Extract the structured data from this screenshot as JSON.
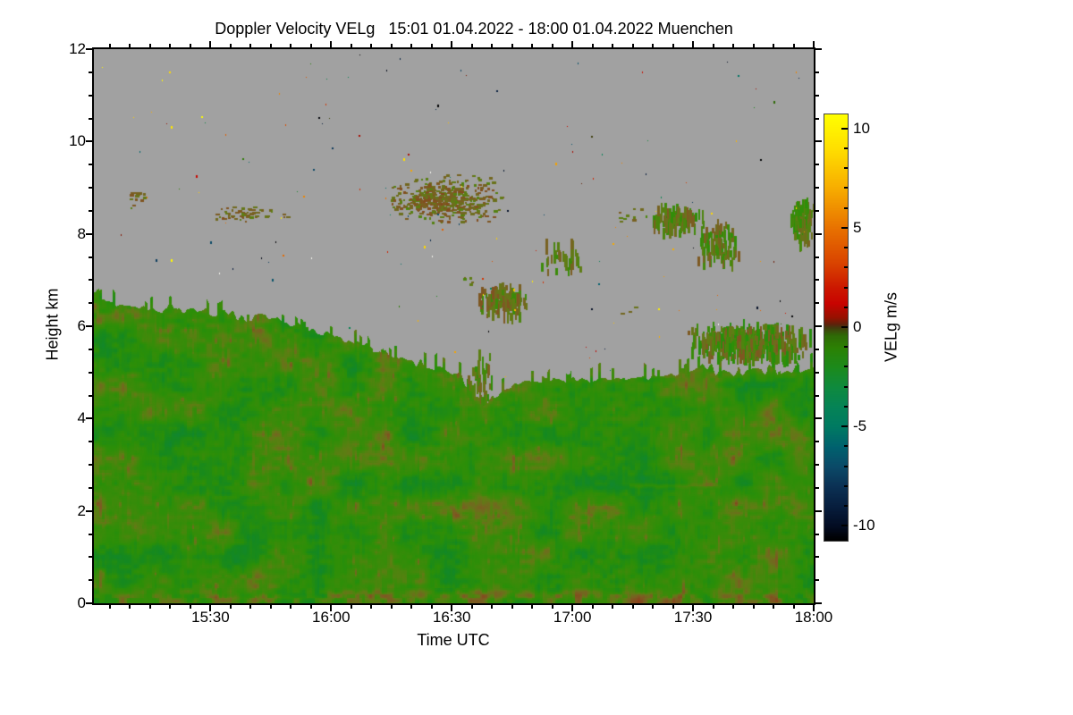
{
  "chart_data": {
    "type": "heatmap",
    "title": "Doppler Velocity VELg   15:01 01.04.2022 - 18:00 01.04.2022 Muenchen",
    "instrument_quantity": "Doppler Velocity VELg",
    "site": "Muenchen",
    "time_start": "15:01 01.04.2022",
    "time_end": "18:00 01.04.2022",
    "xlabel": "Time UTC",
    "ylabel": "Height km",
    "x_range_minutes": [
      0,
      179
    ],
    "x_major_ticks": [
      {
        "label": "15:30",
        "t": 29
      },
      {
        "label": "16:00",
        "t": 59
      },
      {
        "label": "16:30",
        "t": 89
      },
      {
        "label": "17:00",
        "t": 119
      },
      {
        "label": "17:30",
        "t": 149
      },
      {
        "label": "18:00",
        "t": 179
      }
    ],
    "x_minor_step_min": 5,
    "x_minor_phase_min": 4,
    "y_range_km": [
      0,
      12
    ],
    "y_major_ticks": [
      0,
      2,
      4,
      6,
      8,
      10,
      12
    ],
    "y_minor_step_km": 0.5,
    "grid": false,
    "no_data_color": "#a1a1a1",
    "frame_color": "#000000",
    "colorbar": {
      "label": "VELg m/s",
      "units": "m/s",
      "vmin": -10.7,
      "vmax": 10.7,
      "major_ticks": [
        10,
        5,
        0,
        -5,
        -10
      ],
      "minor_step": 1,
      "position": "right",
      "stops": [
        {
          "v": 10.7,
          "c": "#ffff00"
        },
        {
          "v": 9.0,
          "c": "#ffdf00"
        },
        {
          "v": 7.0,
          "c": "#f7ad00"
        },
        {
          "v": 5.0,
          "c": "#e87200"
        },
        {
          "v": 3.2,
          "c": "#d94300"
        },
        {
          "v": 2.0,
          "c": "#cc1800"
        },
        {
          "v": 1.2,
          "c": "#c80400"
        },
        {
          "v": 0.5,
          "c": "#971100"
        },
        {
          "v": 0.15,
          "c": "#5c230c"
        },
        {
          "v": 0.0,
          "c": "#433a0e"
        },
        {
          "v": -0.4,
          "c": "#2f6a06"
        },
        {
          "v": -1.0,
          "c": "#2c8104"
        },
        {
          "v": -2.0,
          "c": "#1c8a1c"
        },
        {
          "v": -3.0,
          "c": "#0f8a3e"
        },
        {
          "v": -4.0,
          "c": "#058356"
        },
        {
          "v": -5.0,
          "c": "#007a62"
        },
        {
          "v": -6.0,
          "c": "#00626e"
        },
        {
          "v": -7.0,
          "c": "#0b4a68"
        },
        {
          "v": -8.0,
          "c": "#0b3154"
        },
        {
          "v": -9.0,
          "c": "#071e3e"
        },
        {
          "v": -10.0,
          "c": "#030c22"
        },
        {
          "v": -10.7,
          "c": "#000000"
        }
      ]
    },
    "layer_top_profile": {
      "comment": "top of continuous aerosol/cloud return layer, km vs minutes after 15:01",
      "t_min": [
        0,
        10,
        21,
        32,
        43,
        54,
        66,
        77,
        85,
        91,
        94,
        97,
        100,
        104,
        108,
        116,
        124,
        132,
        141,
        150,
        160,
        170,
        179
      ],
      "km": [
        6.58,
        6.47,
        6.38,
        6.28,
        6.18,
        5.93,
        5.6,
        5.28,
        5.12,
        4.96,
        4.62,
        4.3,
        4.48,
        4.7,
        4.8,
        4.77,
        4.82,
        4.86,
        4.96,
        5.1,
        5.02,
        5.05,
        5.08
      ]
    },
    "main_layer_values": {
      "typical_velocity_ms": -1.5,
      "range_ms": [
        -2.8,
        0.8
      ],
      "description": "mostly green (approx -1 to -2.5 m/s downdraft scale) with brown/olive mottling near 0 m/s and reddish streaks near ground"
    },
    "texture_palette": [
      {
        "v": -3.0,
        "c": "#0d8344"
      },
      {
        "v": -2.3,
        "c": "#15891f"
      },
      {
        "v": -1.6,
        "c": "#2b8f08"
      },
      {
        "v": -0.9,
        "c": "#3f8a0a"
      },
      {
        "v": -0.3,
        "c": "#5f7d14"
      },
      {
        "v": 0.1,
        "c": "#6f6c1e"
      },
      {
        "v": 0.6,
        "c": "#7c5c22"
      },
      {
        "v": 1.2,
        "c": "#84491e"
      },
      {
        "v": 2.2,
        "c": "#9c3212"
      }
    ],
    "cloud_patches": [
      {
        "t0": 7,
        "t1": 12.5,
        "km0": 8.55,
        "km1": 9.0,
        "density": 0.3,
        "mode": "dash",
        "vmin": -0.5,
        "vmax": 0.9
      },
      {
        "t0": 29,
        "t1": 45,
        "km0": 8.28,
        "km1": 8.66,
        "density": 0.5,
        "mode": "dash",
        "vmin": -0.4,
        "vmax": 1.0
      },
      {
        "t0": 45,
        "t1": 49,
        "km0": 8.3,
        "km1": 8.55,
        "density": 0.15,
        "mode": "dash",
        "vmin": -0.4,
        "vmax": 0.8
      },
      {
        "t0": 72,
        "t1": 103,
        "km0": 8.2,
        "km1": 9.35,
        "density": 0.45,
        "mode": "dash",
        "vmin": -0.6,
        "vmax": 1.1
      },
      {
        "t0": 77,
        "t1": 95,
        "km0": 8.4,
        "km1": 9.05,
        "density": 0.95,
        "mode": "dash",
        "vmin": -0.5,
        "vmax": 1.2
      },
      {
        "t0": 95,
        "t1": 108,
        "km0": 6.15,
        "km1": 6.9,
        "density": 0.6,
        "mode": "strand",
        "vmin": -1.2,
        "vmax": 0.9
      },
      {
        "t0": 90,
        "t1": 95,
        "km0": 6.9,
        "km1": 7.15,
        "density": 0.22,
        "mode": "dash",
        "vmin": -0.8,
        "vmax": 0.6
      },
      {
        "t0": 110,
        "t1": 122,
        "km0": 7.0,
        "km1": 7.9,
        "density": 0.16,
        "mode": "strand",
        "vmin": -1.2,
        "vmax": 0.6
      },
      {
        "t0": 138,
        "t1": 152,
        "km0": 7.95,
        "km1": 8.62,
        "density": 0.55,
        "mode": "strand",
        "vmin": -1.5,
        "vmax": 0.7
      },
      {
        "t0": 149,
        "t1": 161,
        "km0": 7.25,
        "km1": 8.2,
        "density": 0.45,
        "mode": "strand",
        "vmin": -1.5,
        "vmax": 0.7
      },
      {
        "t0": 128,
        "t1": 138,
        "km0": 8.25,
        "km1": 8.6,
        "density": 0.15,
        "mode": "dash",
        "vmin": -0.8,
        "vmax": 0.7
      },
      {
        "t0": 173,
        "t1": 179,
        "km0": 7.7,
        "km1": 8.75,
        "density": 0.85,
        "mode": "strand",
        "vmin": -1.7,
        "vmax": 0.4
      },
      {
        "t0": 147,
        "t1": 179,
        "km0": 5.22,
        "km1": 6.02,
        "density": 1.0,
        "mode": "strand",
        "vmin": -1.9,
        "vmax": 0.8
      },
      {
        "t0": 92,
        "t1": 100,
        "km0": 4.15,
        "km1": 5.5,
        "density": 0.2,
        "mode": "strand",
        "vmin": -1.5,
        "vmax": 0.5
      },
      {
        "t0": 130,
        "t1": 136,
        "km0": 6.25,
        "km1": 6.5,
        "density": 0.12,
        "mode": "dash",
        "vmin": -0.8,
        "vmax": 0.6
      }
    ],
    "near_zero_streaks": [
      {
        "t0": 133,
        "t1": 156,
        "km": 2.55,
        "half_km": 0.07,
        "boost": 1.0
      },
      {
        "t0": 58,
        "t1": 133,
        "km": 0.18,
        "half_km": 0.14,
        "boost": 1.1
      },
      {
        "t0": 28,
        "t1": 58,
        "km": 0.12,
        "half_km": 0.08,
        "boost": 0.6
      }
    ],
    "noise_speckles": {
      "count": 150,
      "white_extra": 5,
      "seed": 7,
      "description": "isolated single-pixel returns of random velocity scattered in the no-data region"
    },
    "legend_position": "right colorbar",
    "ylim": [
      0,
      12
    ],
    "xlim_clock": [
      "15:01",
      "18:00"
    ]
  }
}
